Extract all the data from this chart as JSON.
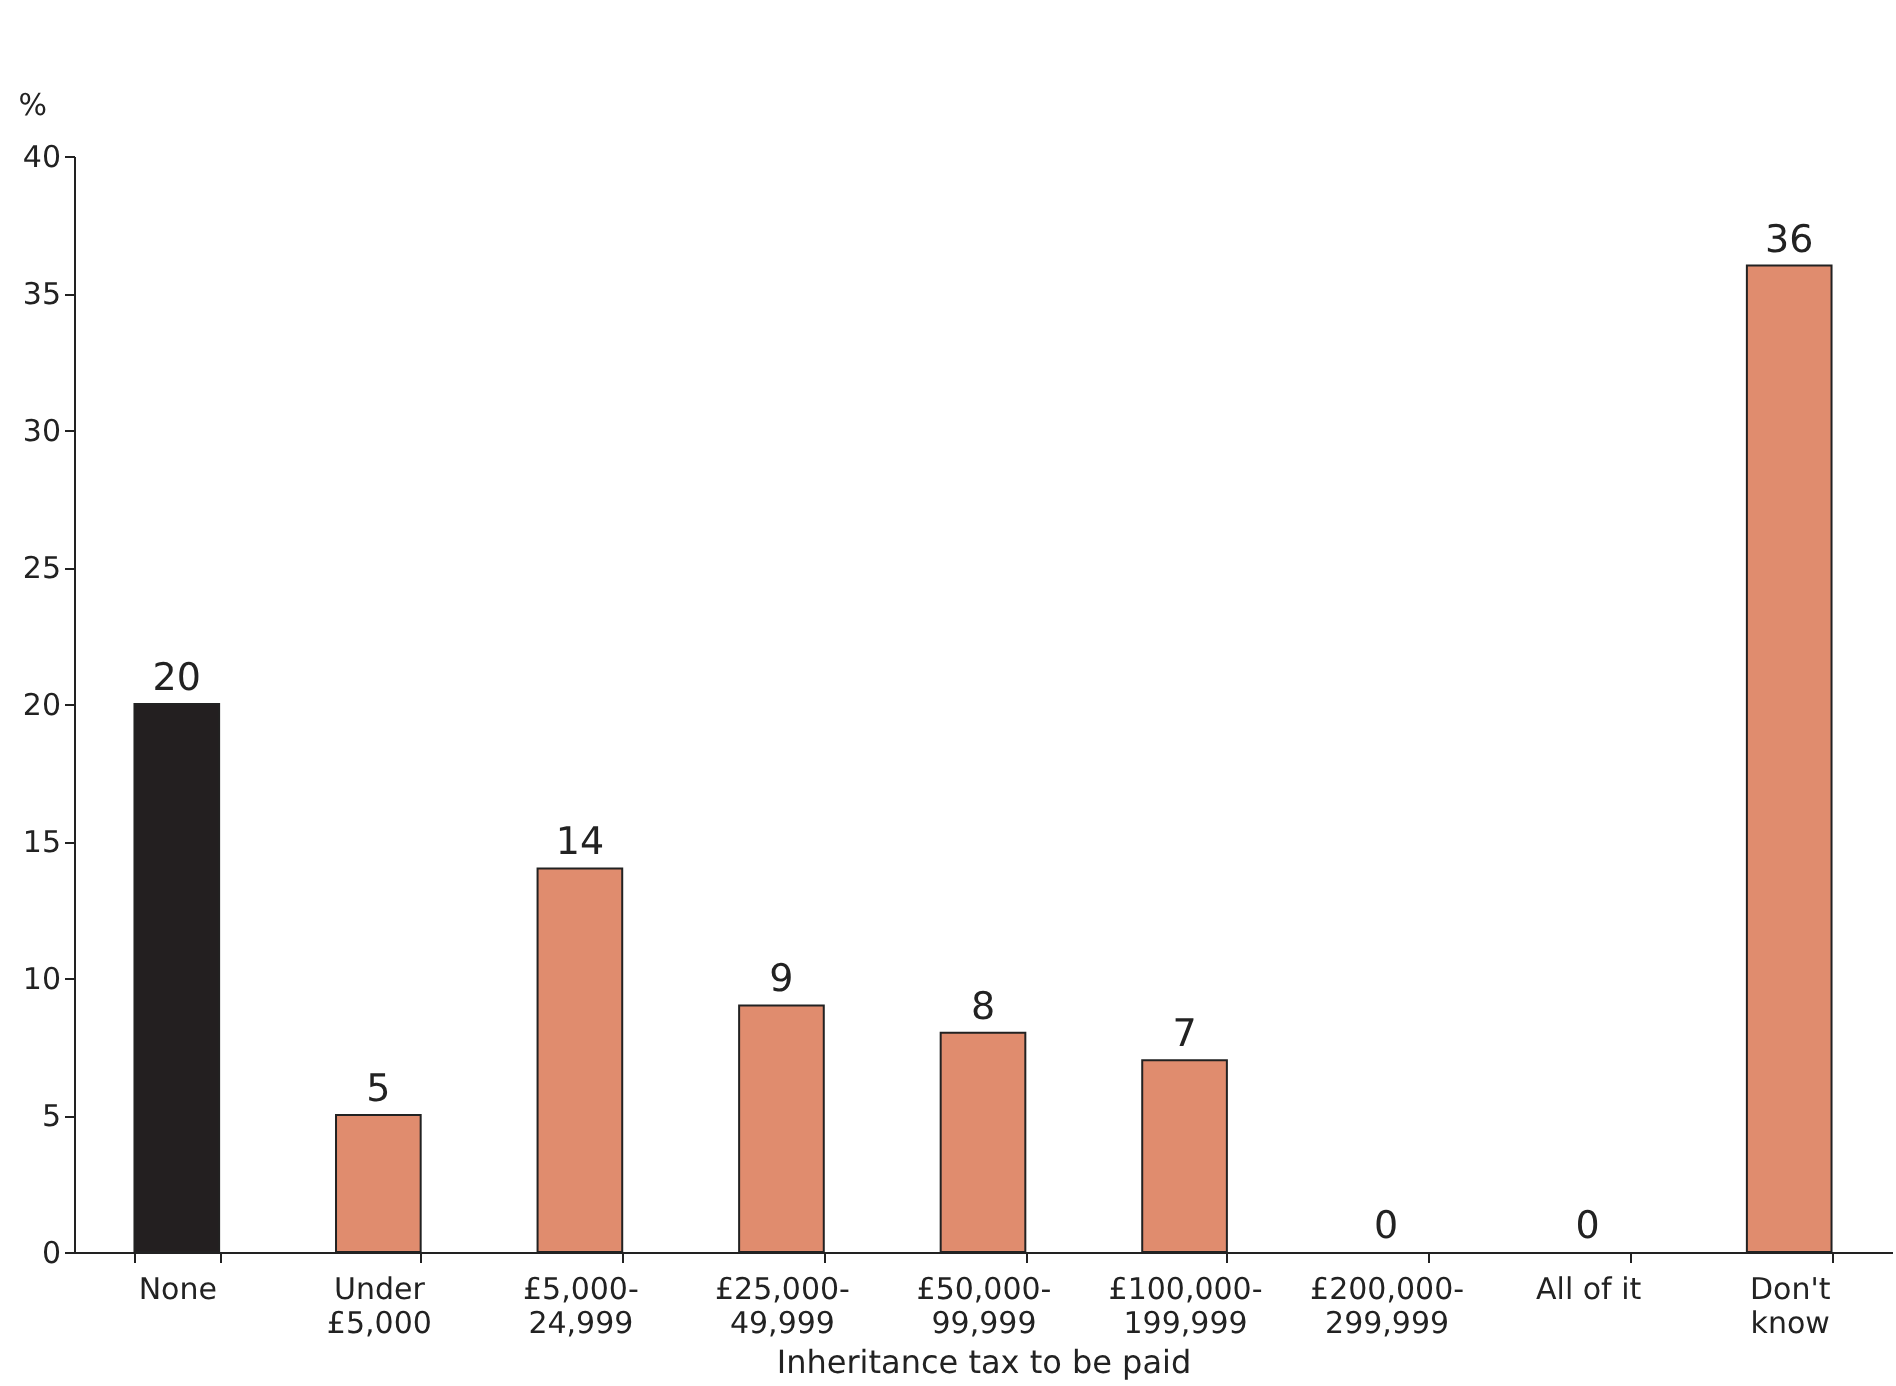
{
  "chart_data": {
    "type": "bar",
    "ylabel": "%",
    "xlabel": "Inheritance tax to be paid",
    "categories": [
      "None",
      "Under\n£5,000",
      "£5,000-\n24,999",
      "£25,000-\n49,999",
      "£50,000-\n99,999",
      "£100,000-\n199,999",
      "£200,000-\n299,999",
      "All of it",
      "Don't\nknow"
    ],
    "values": [
      20,
      5,
      14,
      9,
      8,
      7,
      0,
      0,
      36
    ],
    "colors": [
      "#231f20",
      "#e08c6e",
      "#e08c6e",
      "#e08c6e",
      "#e08c6e",
      "#e08c6e",
      "#e08c6e",
      "#e08c6e",
      "#e08c6e"
    ],
    "ylim": [
      0,
      40
    ],
    "yticks": [
      0,
      5,
      10,
      15,
      20,
      25,
      30,
      35,
      40
    ],
    "grid": false,
    "data_labels": true
  }
}
